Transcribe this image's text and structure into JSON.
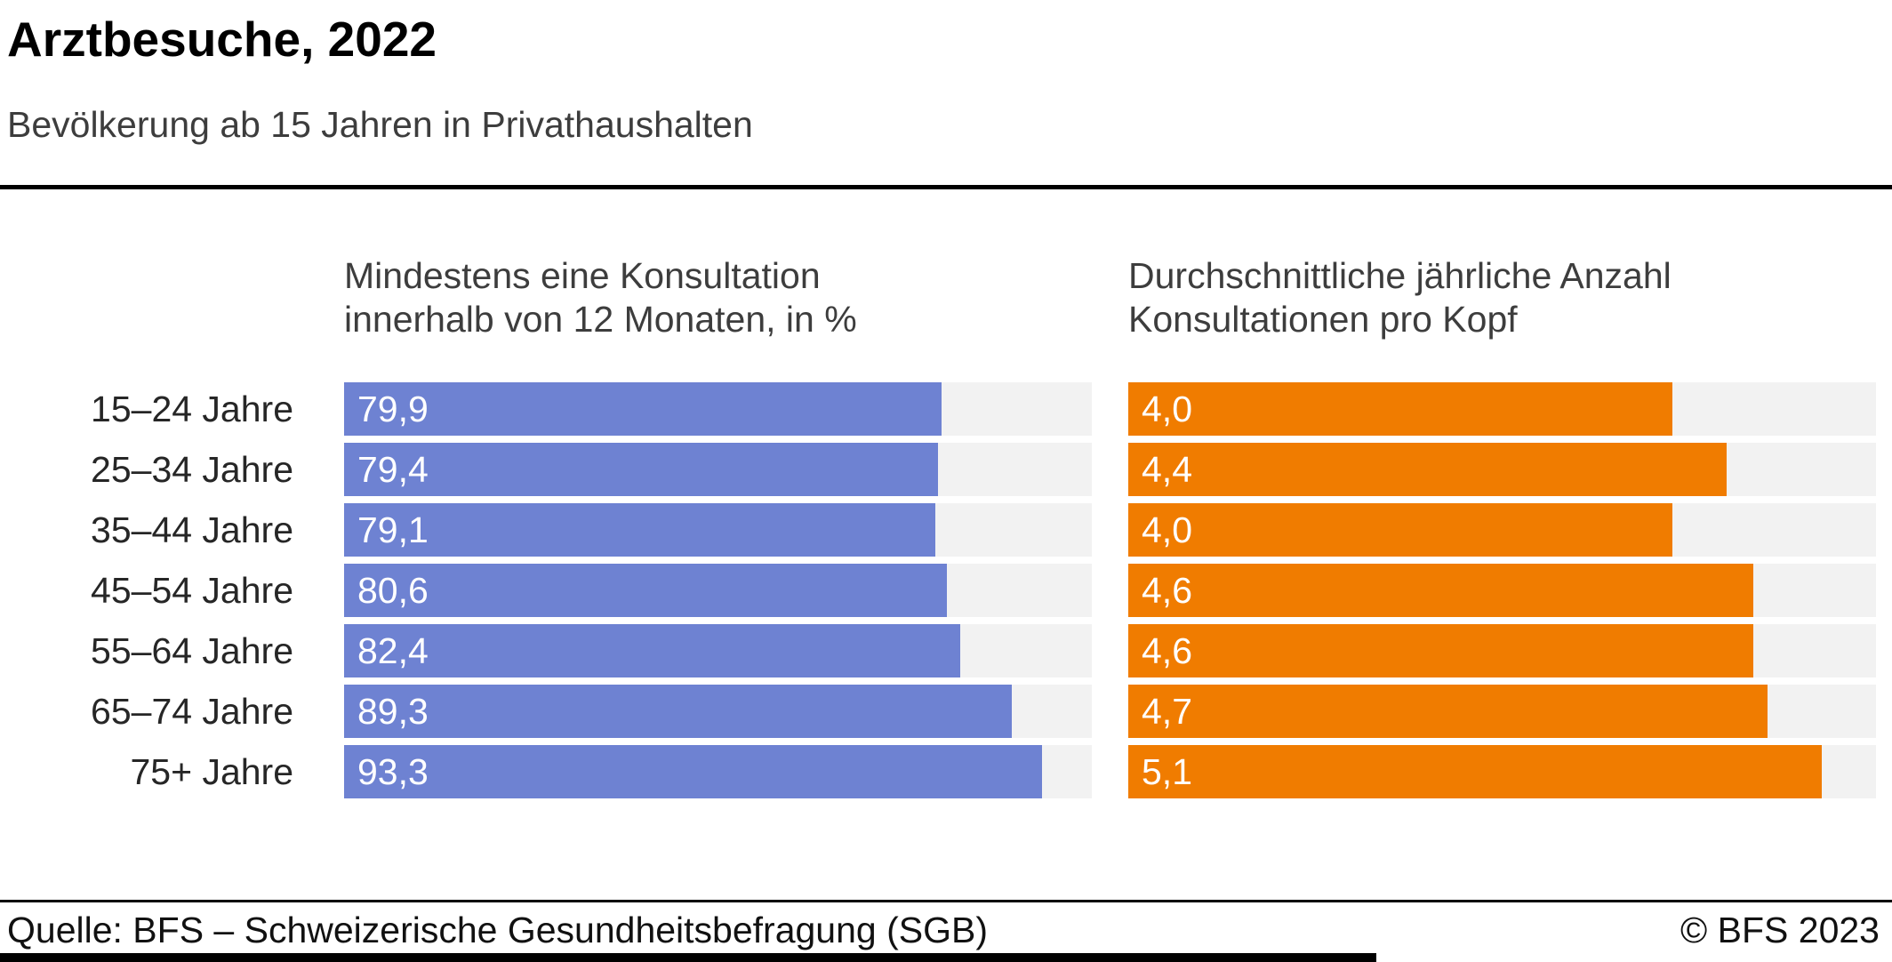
{
  "header": {
    "title": "Arztbesuche, 2022",
    "subtitle": "Bevölkerung ab 15 Jahren in Privathaushalten"
  },
  "footer": {
    "source": "Quelle: BFS – Schweizerische Gesundheitsbefragung (SGB)",
    "copyright": "© BFS 2023"
  },
  "colors": {
    "blue": "#6E82D2",
    "orange": "#F07C00",
    "track": "#F2F2F2"
  },
  "chart_data": {
    "type": "bar",
    "orientation": "horizontal",
    "title": "Arztbesuche, 2022",
    "subtitle": "Bevölkerung ab 15 Jahren in Privathaushalten",
    "grid": false,
    "legend": "none",
    "categories": [
      "15–24 Jahre",
      "25–34 Jahre",
      "35–44 Jahre",
      "45–54 Jahre",
      "55–64 Jahre",
      "65–74 Jahre",
      "75+ Jahre"
    ],
    "series": [
      {
        "name": "Mindestens eine Konsultation innerhalb von 12 Monaten, in %",
        "title_lines": [
          "Mindestens eine Konsultation",
          "innerhalb von 12 Monaten, in %"
        ],
        "values": [
          79.9,
          79.4,
          79.1,
          80.6,
          82.4,
          89.3,
          93.3
        ],
        "labels": [
          "79,9",
          "79,4",
          "79,1",
          "80,6",
          "82,4",
          "89,3",
          "93,3"
        ],
        "xlim": [
          0,
          100
        ],
        "color": "#6E82D2"
      },
      {
        "name": "Durchschnittliche jährliche Anzahl Konsultationen pro Kopf",
        "title_lines": [
          "Durchschnittliche jährliche Anzahl",
          "Konsultationen pro Kopf"
        ],
        "values": [
          4.0,
          4.4,
          4.0,
          4.6,
          4.6,
          4.7,
          5.1
        ],
        "labels": [
          "4,0",
          "4,4",
          "4,0",
          "4,6",
          "4,6",
          "4,7",
          "5,1"
        ],
        "xlim": [
          0,
          5.5
        ],
        "color": "#F07C00"
      }
    ]
  }
}
